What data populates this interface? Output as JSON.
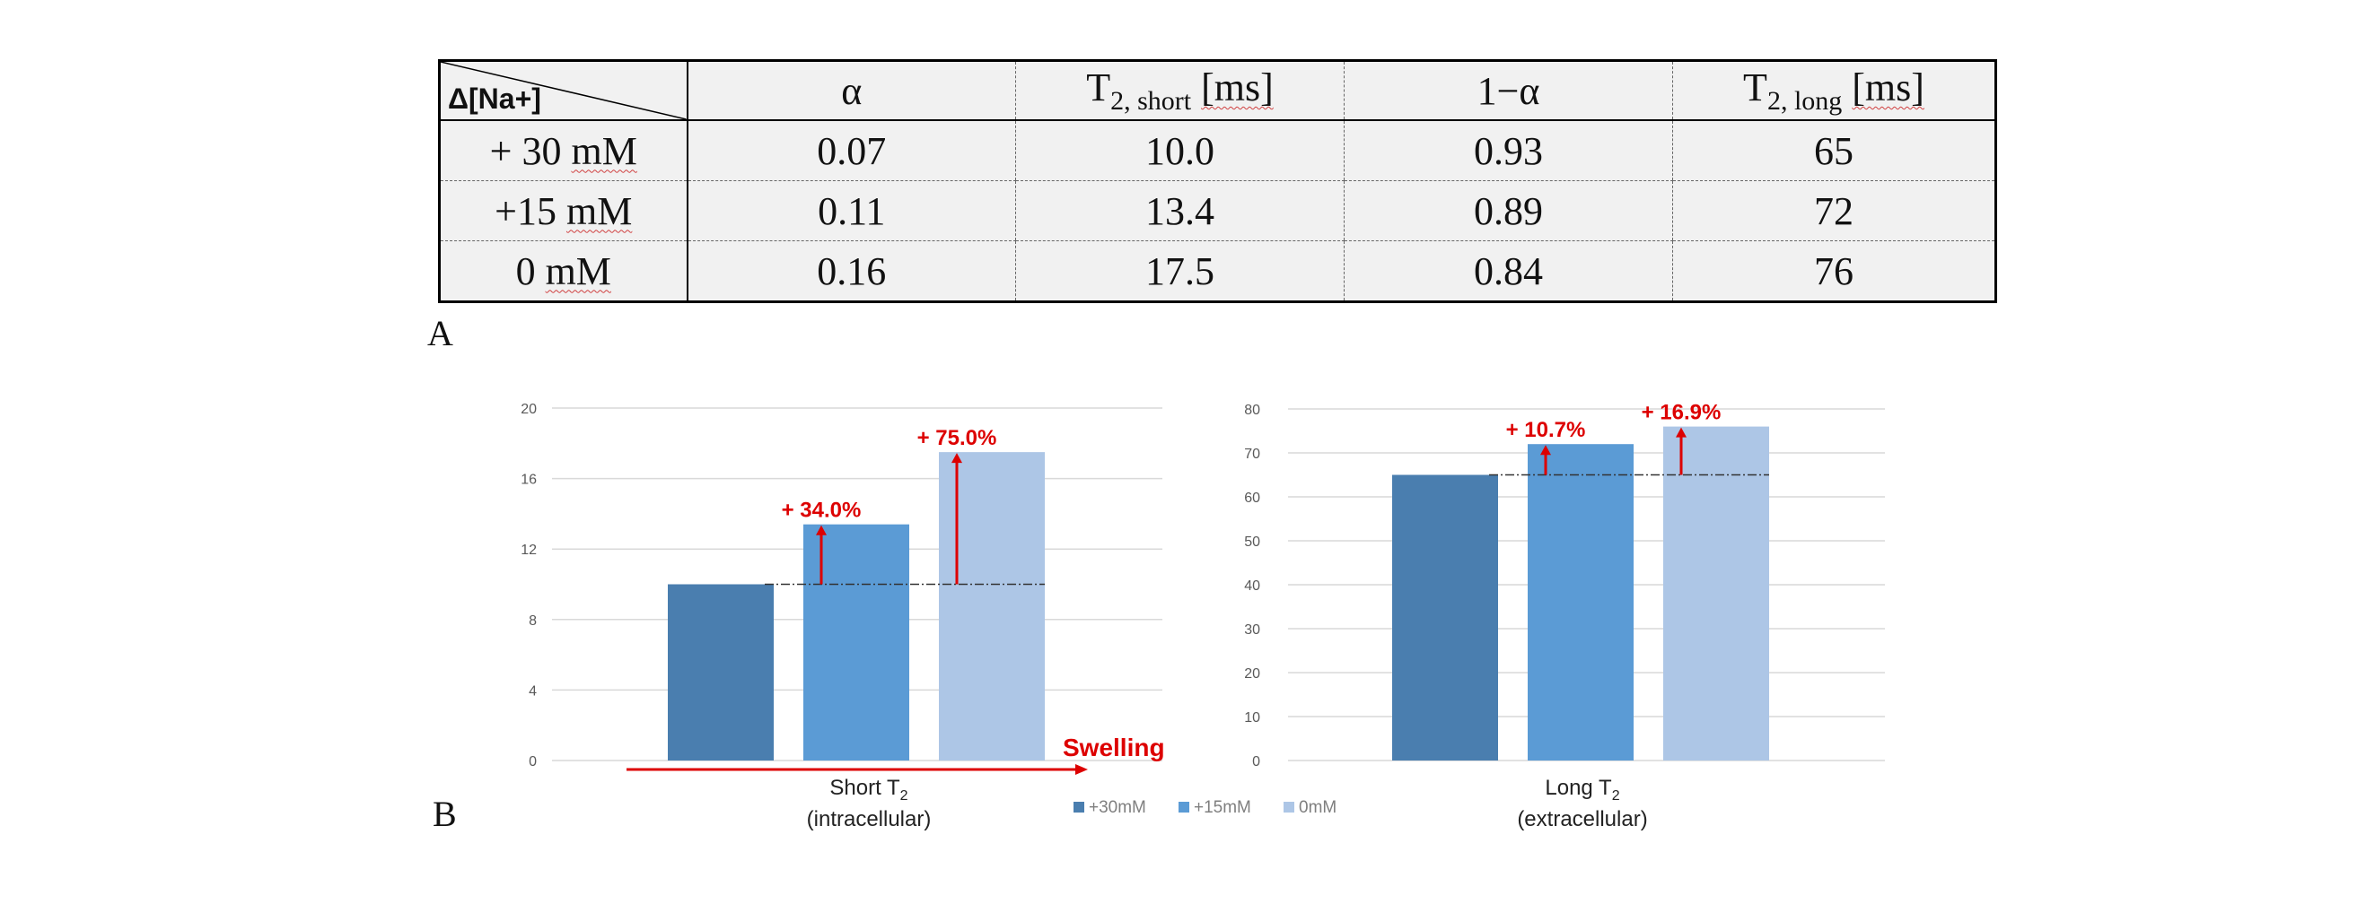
{
  "table": {
    "corner_label": "Δ[Na+]",
    "headers": [
      "α",
      "T",
      "2, short",
      "[ms]",
      "1−α",
      "T",
      "2, long",
      "[ms]"
    ],
    "rows": [
      {
        "label": "+ 30 mM",
        "label_num": "+ 30",
        "label_unit": "mM",
        "alpha": "0.07",
        "t2_short": "10.0",
        "one_minus_alpha": "0.93",
        "t2_long": "65"
      },
      {
        "label": "+15 mM",
        "label_num": "+15",
        "label_unit": "mM",
        "alpha": "0.11",
        "t2_short": "13.4",
        "one_minus_alpha": "0.89",
        "t2_long": "72"
      },
      {
        "label": "0 mM",
        "label_num": "0",
        "label_unit": "mM",
        "alpha": "0.16",
        "t2_short": "17.5",
        "one_minus_alpha": "0.84",
        "t2_long": "76"
      }
    ]
  },
  "panel_labels": {
    "a": "A",
    "b": "B"
  },
  "colors": {
    "s30": "#4a7eaf",
    "s15": "#5b9bd5",
    "s0": "#adc6e6",
    "annotation": "#dd0000",
    "grid": "#d9d9d9",
    "tick": "#595959",
    "legend_text": "#7f7f7f"
  },
  "chart_data": [
    {
      "type": "bar",
      "title": "",
      "xlabel": "Short T2 (intracellular)",
      "xlabel_main": "Short T",
      "xlabel_sub": "2",
      "xlabel_line2": "(intracellular)",
      "ylabel": "",
      "ylim": [
        0,
        20
      ],
      "yticks": [
        "0",
        "4",
        "8",
        "12",
        "16",
        "20"
      ],
      "series": [
        {
          "name": "+30mM",
          "values": [
            10.0
          ]
        },
        {
          "name": "+15mM",
          "values": [
            13.4
          ]
        },
        {
          "name": "0mM",
          "values": [
            17.5
          ]
        }
      ],
      "annotations": [
        {
          "series": "+15mM",
          "text": "+ 34.0%"
        },
        {
          "series": "0mM",
          "text": "+ 75.0%"
        },
        {
          "text": "Swelling"
        }
      ]
    },
    {
      "type": "bar",
      "title": "",
      "xlabel": "Long T2 (extracellular)",
      "xlabel_main": "Long T",
      "xlabel_sub": "2",
      "xlabel_line2": "(extracellular)",
      "ylabel": "",
      "ylim": [
        0,
        80
      ],
      "yticks": [
        "0",
        "10",
        "20",
        "30",
        "40",
        "50",
        "60",
        "70",
        "80"
      ],
      "series": [
        {
          "name": "+30mM",
          "values": [
            65
          ]
        },
        {
          "name": "+15mM",
          "values": [
            72
          ]
        },
        {
          "name": "0mM",
          "values": [
            76
          ]
        }
      ],
      "annotations": [
        {
          "series": "+15mM",
          "text": "+ 10.7%"
        },
        {
          "series": "0mM",
          "text": "+ 16.9%"
        }
      ]
    }
  ],
  "legend": [
    "+30mM",
    "+15mM",
    "0mM"
  ]
}
